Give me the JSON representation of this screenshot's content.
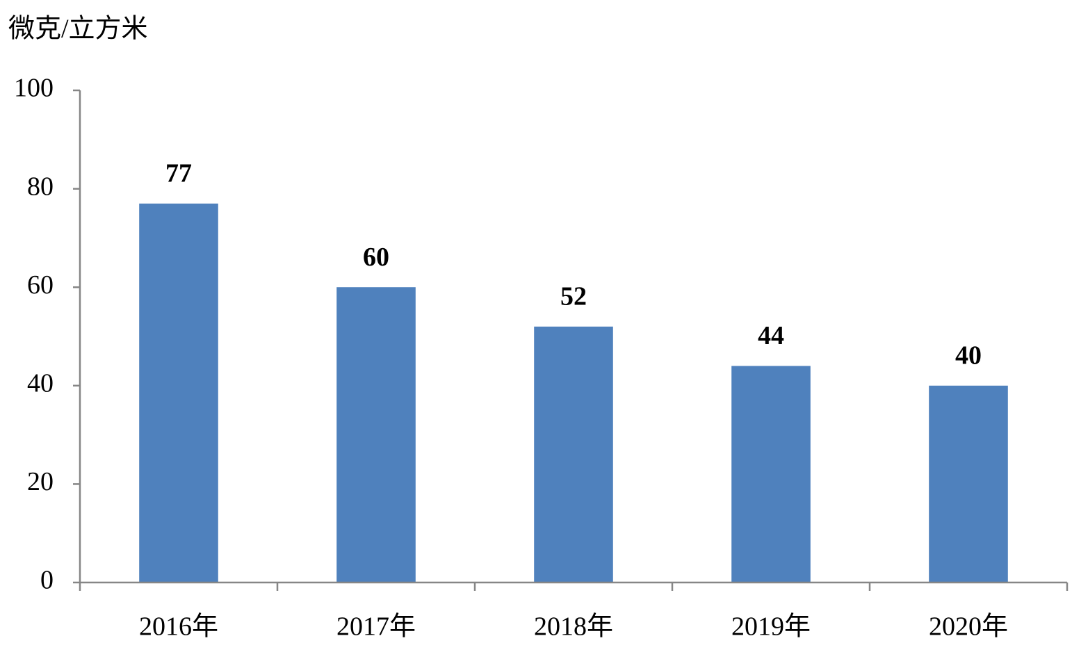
{
  "chart_data": {
    "type": "bar",
    "y_axis_label": "微克/立方米",
    "categories": [
      "2016年",
      "2017年",
      "2018年",
      "2019年",
      "2020年"
    ],
    "values": [
      77,
      60,
      52,
      44,
      40
    ],
    "color": "#4f81bd",
    "ylim": [
      0,
      100
    ],
    "yticks": [
      0,
      20,
      40,
      60,
      80,
      100
    ]
  }
}
